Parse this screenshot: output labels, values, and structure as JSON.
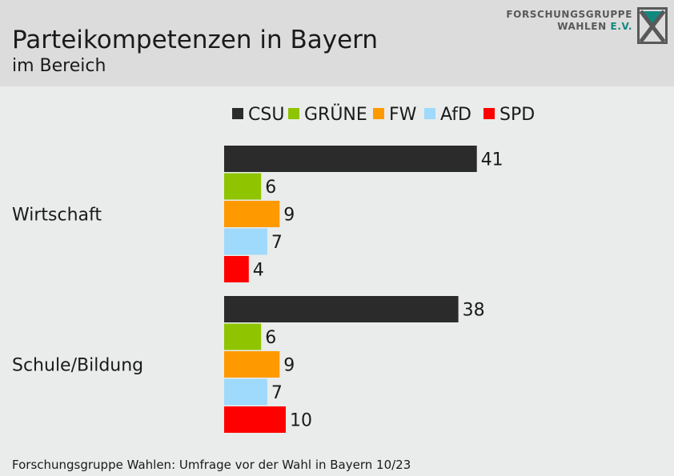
{
  "header": {
    "title": "Parteikompetenzen in Bayern",
    "subtitle": "im Bereich",
    "logo_line1": "FORSCHUNGSGRUPPE",
    "logo_line2": "WAHLEN",
    "logo_line2_suffix": "E.V.",
    "logo_icon": "x-ballot-icon",
    "logo_color": "#595959",
    "logo_accent_color": "#12897f"
  },
  "chart_data": {
    "type": "bar",
    "orientation": "horizontal",
    "categories": [
      "Wirtschaft",
      "Schule/Bildung"
    ],
    "series": [
      {
        "name": "CSU",
        "color": "#2b2b2b",
        "values": [
          41,
          38
        ]
      },
      {
        "name": "GRÜNE",
        "color": "#8fc400",
        "values": [
          6,
          6
        ]
      },
      {
        "name": "FW",
        "color": "#ff9900",
        "values": [
          9,
          9
        ]
      },
      {
        "name": "AfD",
        "color": "#9fd9fb",
        "values": [
          7,
          7
        ]
      },
      {
        "name": "SPD",
        "color": "#ff0000",
        "values": [
          4,
          10
        ]
      }
    ],
    "title": "Parteikompetenzen in Bayern",
    "subtitle": "im Bereich",
    "xlabel": "",
    "ylabel": "",
    "xlim": [
      0,
      100
    ],
    "grid": false,
    "legend": "top",
    "data_labels": true
  },
  "footer": {
    "source": "Forschungsgruppe Wahlen: Umfrage vor der Wahl in Bayern 10/23"
  }
}
